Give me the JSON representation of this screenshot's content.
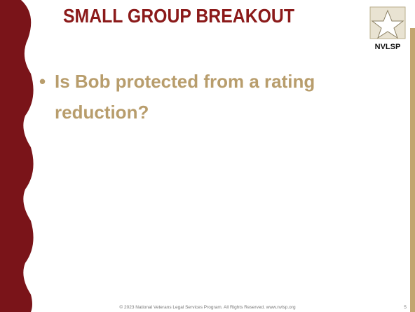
{
  "slide": {
    "title": "SMALL GROUP BREAKOUT",
    "logo_text": "NVLSP",
    "bullets": [
      "Is Bob protected from a rating reduction?"
    ],
    "footer": "© 2023 National Veterans Legal Services Program. All Rights Reserved.  www.nvlsp.org",
    "page_number": 5
  }
}
